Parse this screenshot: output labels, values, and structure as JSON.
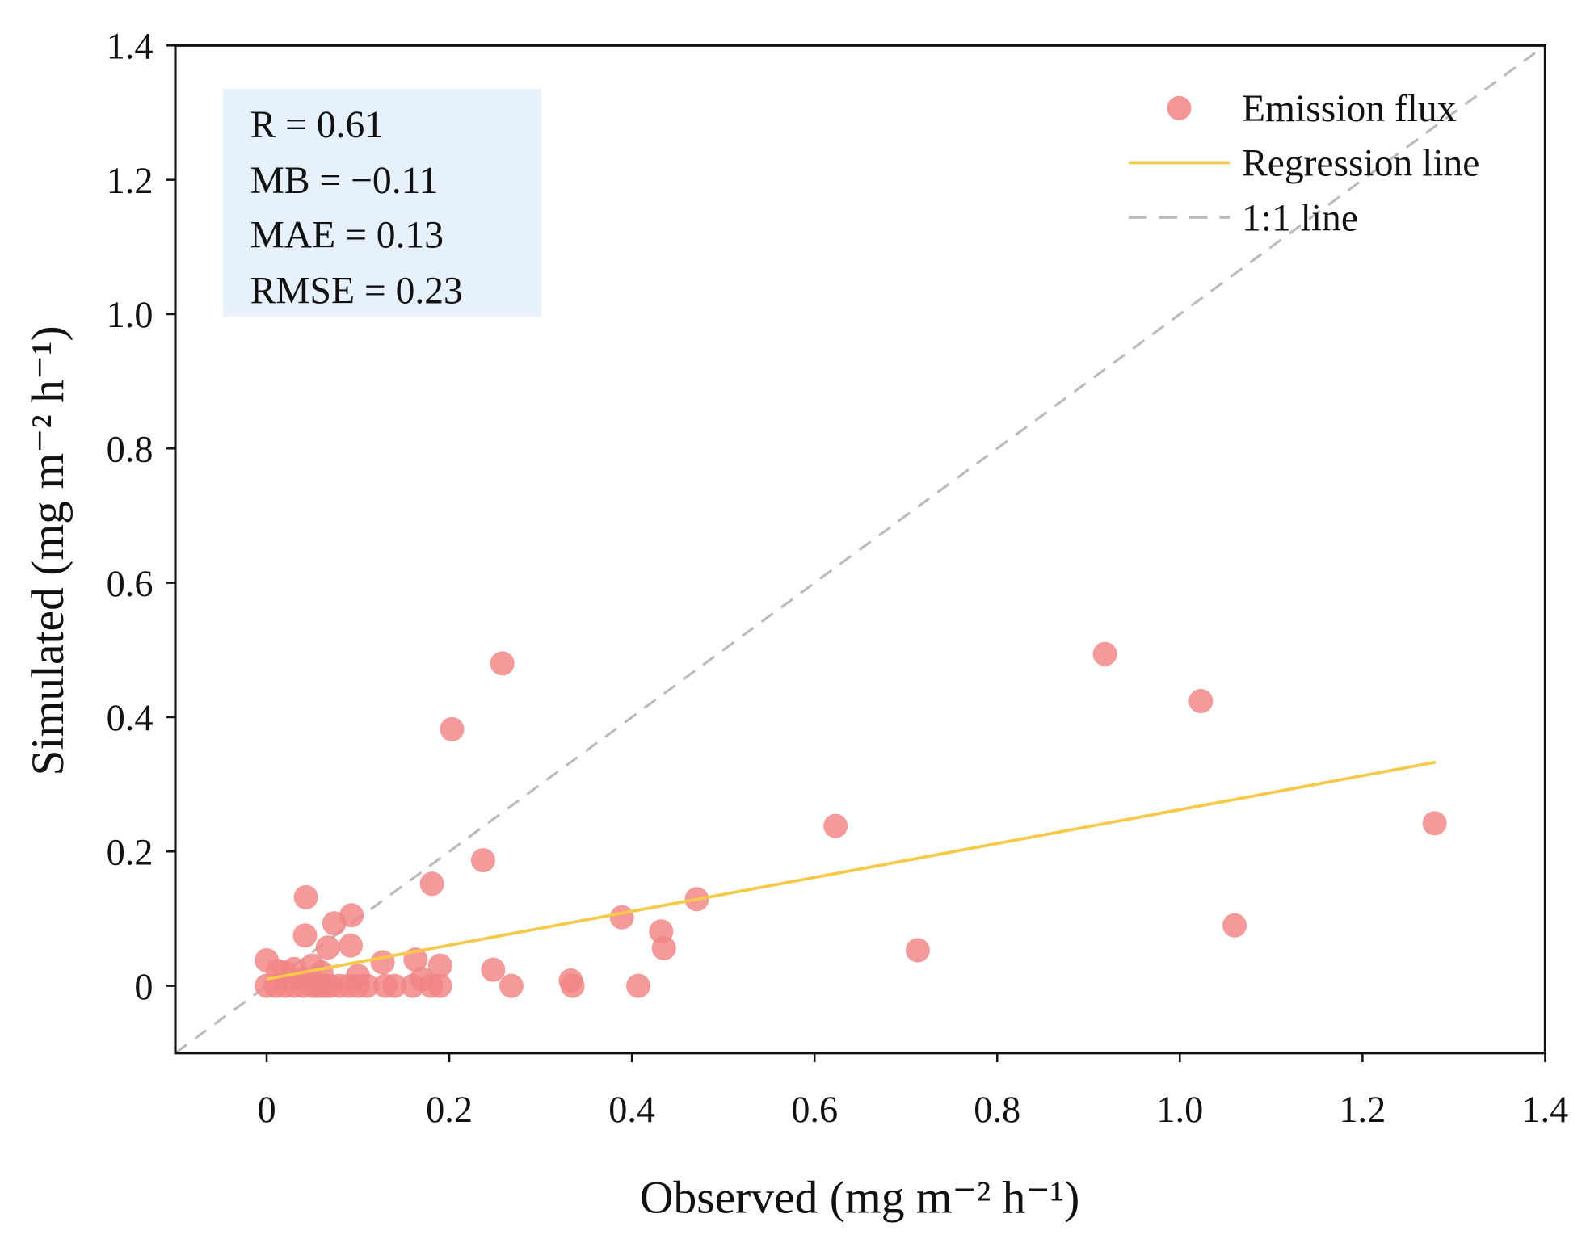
{
  "chart_data": {
    "type": "scatter",
    "xlabel": "Observed (mg m⁻² h⁻¹)",
    "ylabel": "Simulated (mg m⁻² h⁻¹)",
    "xlim": [
      -0.1,
      1.4
    ],
    "ylim": [
      -0.1,
      1.4
    ],
    "xticks": [
      0,
      0.2,
      0.4,
      0.6,
      0.8,
      1.0,
      1.2,
      1.4
    ],
    "xtick_labels": [
      "0",
      "0.2",
      "0.4",
      "0.6",
      "0.8",
      "1.0",
      "1.2",
      "1.4"
    ],
    "yticks": [
      0,
      0.2,
      0.4,
      0.6,
      0.8,
      1.0,
      1.2,
      1.4
    ],
    "ytick_labels": [
      "0",
      "0.2",
      "0.4",
      "0.6",
      "0.8",
      "1.0",
      "1.2",
      "1.4"
    ],
    "grid": false,
    "legend_position": "top-right",
    "stats": [
      "R = 0.61",
      "MB = −0.11",
      "MAE = 0.13",
      "RMSE = 0.23"
    ],
    "series": [
      {
        "name": "Emission flux",
        "color": "#f28484",
        "points": [
          [
            0.258,
            0.48
          ],
          [
            0.203,
            0.382
          ],
          [
            0.237,
            0.187
          ],
          [
            0.181,
            0.152
          ],
          [
            0.043,
            0.132
          ],
          [
            0.093,
            0.105
          ],
          [
            0.074,
            0.093
          ],
          [
            0.042,
            0.075
          ],
          [
            0.092,
            0.06
          ],
          [
            0.067,
            0.057
          ],
          [
            0,
            0.038
          ],
          [
            0.163,
            0.039
          ],
          [
            0.19,
            0.03
          ],
          [
            0.127,
            0.035
          ],
          [
            0.248,
            0.024
          ],
          [
            0.389,
            0.102
          ],
          [
            0.432,
            0.081
          ],
          [
            0.435,
            0.056
          ],
          [
            0.471,
            0.129
          ],
          [
            0.333,
            0.008
          ],
          [
            0.335,
            0
          ],
          [
            0.407,
            0
          ],
          [
            0.268,
            0
          ],
          [
            0.623,
            0.238
          ],
          [
            0.713,
            0.053
          ],
          [
            0.918,
            0.494
          ],
          [
            1.023,
            0.424
          ],
          [
            1.06,
            0.09
          ],
          [
            1.279,
            0.242
          ],
          [
            0,
            0
          ],
          [
            0.01,
            0
          ],
          [
            0.02,
            0
          ],
          [
            0.03,
            0
          ],
          [
            0.04,
            0
          ],
          [
            0.05,
            0
          ],
          [
            0.055,
            0
          ],
          [
            0.06,
            0
          ],
          [
            0.065,
            0
          ],
          [
            0.07,
            0
          ],
          [
            0.08,
            0
          ],
          [
            0.09,
            0
          ],
          [
            0.1,
            0
          ],
          [
            0.11,
            0
          ],
          [
            0.13,
            0
          ],
          [
            0.14,
            0
          ],
          [
            0.16,
            0
          ],
          [
            0.18,
            0
          ],
          [
            0.19,
            0
          ],
          [
            0.02,
            0.02
          ],
          [
            0.03,
            0.025
          ],
          [
            0.05,
            0.03
          ],
          [
            0.06,
            0.02
          ],
          [
            0.1,
            0.015
          ],
          [
            0.17,
            0.01
          ],
          [
            0.04,
            0.01
          ],
          [
            0.012,
            0.022
          ]
        ]
      },
      {
        "name": "Regression line",
        "color": "#f7c948",
        "line": [
          [
            0,
            0.01
          ],
          [
            1.28,
            0.333
          ]
        ]
      },
      {
        "name": "1:1 line",
        "color": "#bbbbbb",
        "line": [
          [
            -0.1,
            -0.1
          ],
          [
            1.4,
            1.4
          ]
        ]
      }
    ]
  }
}
